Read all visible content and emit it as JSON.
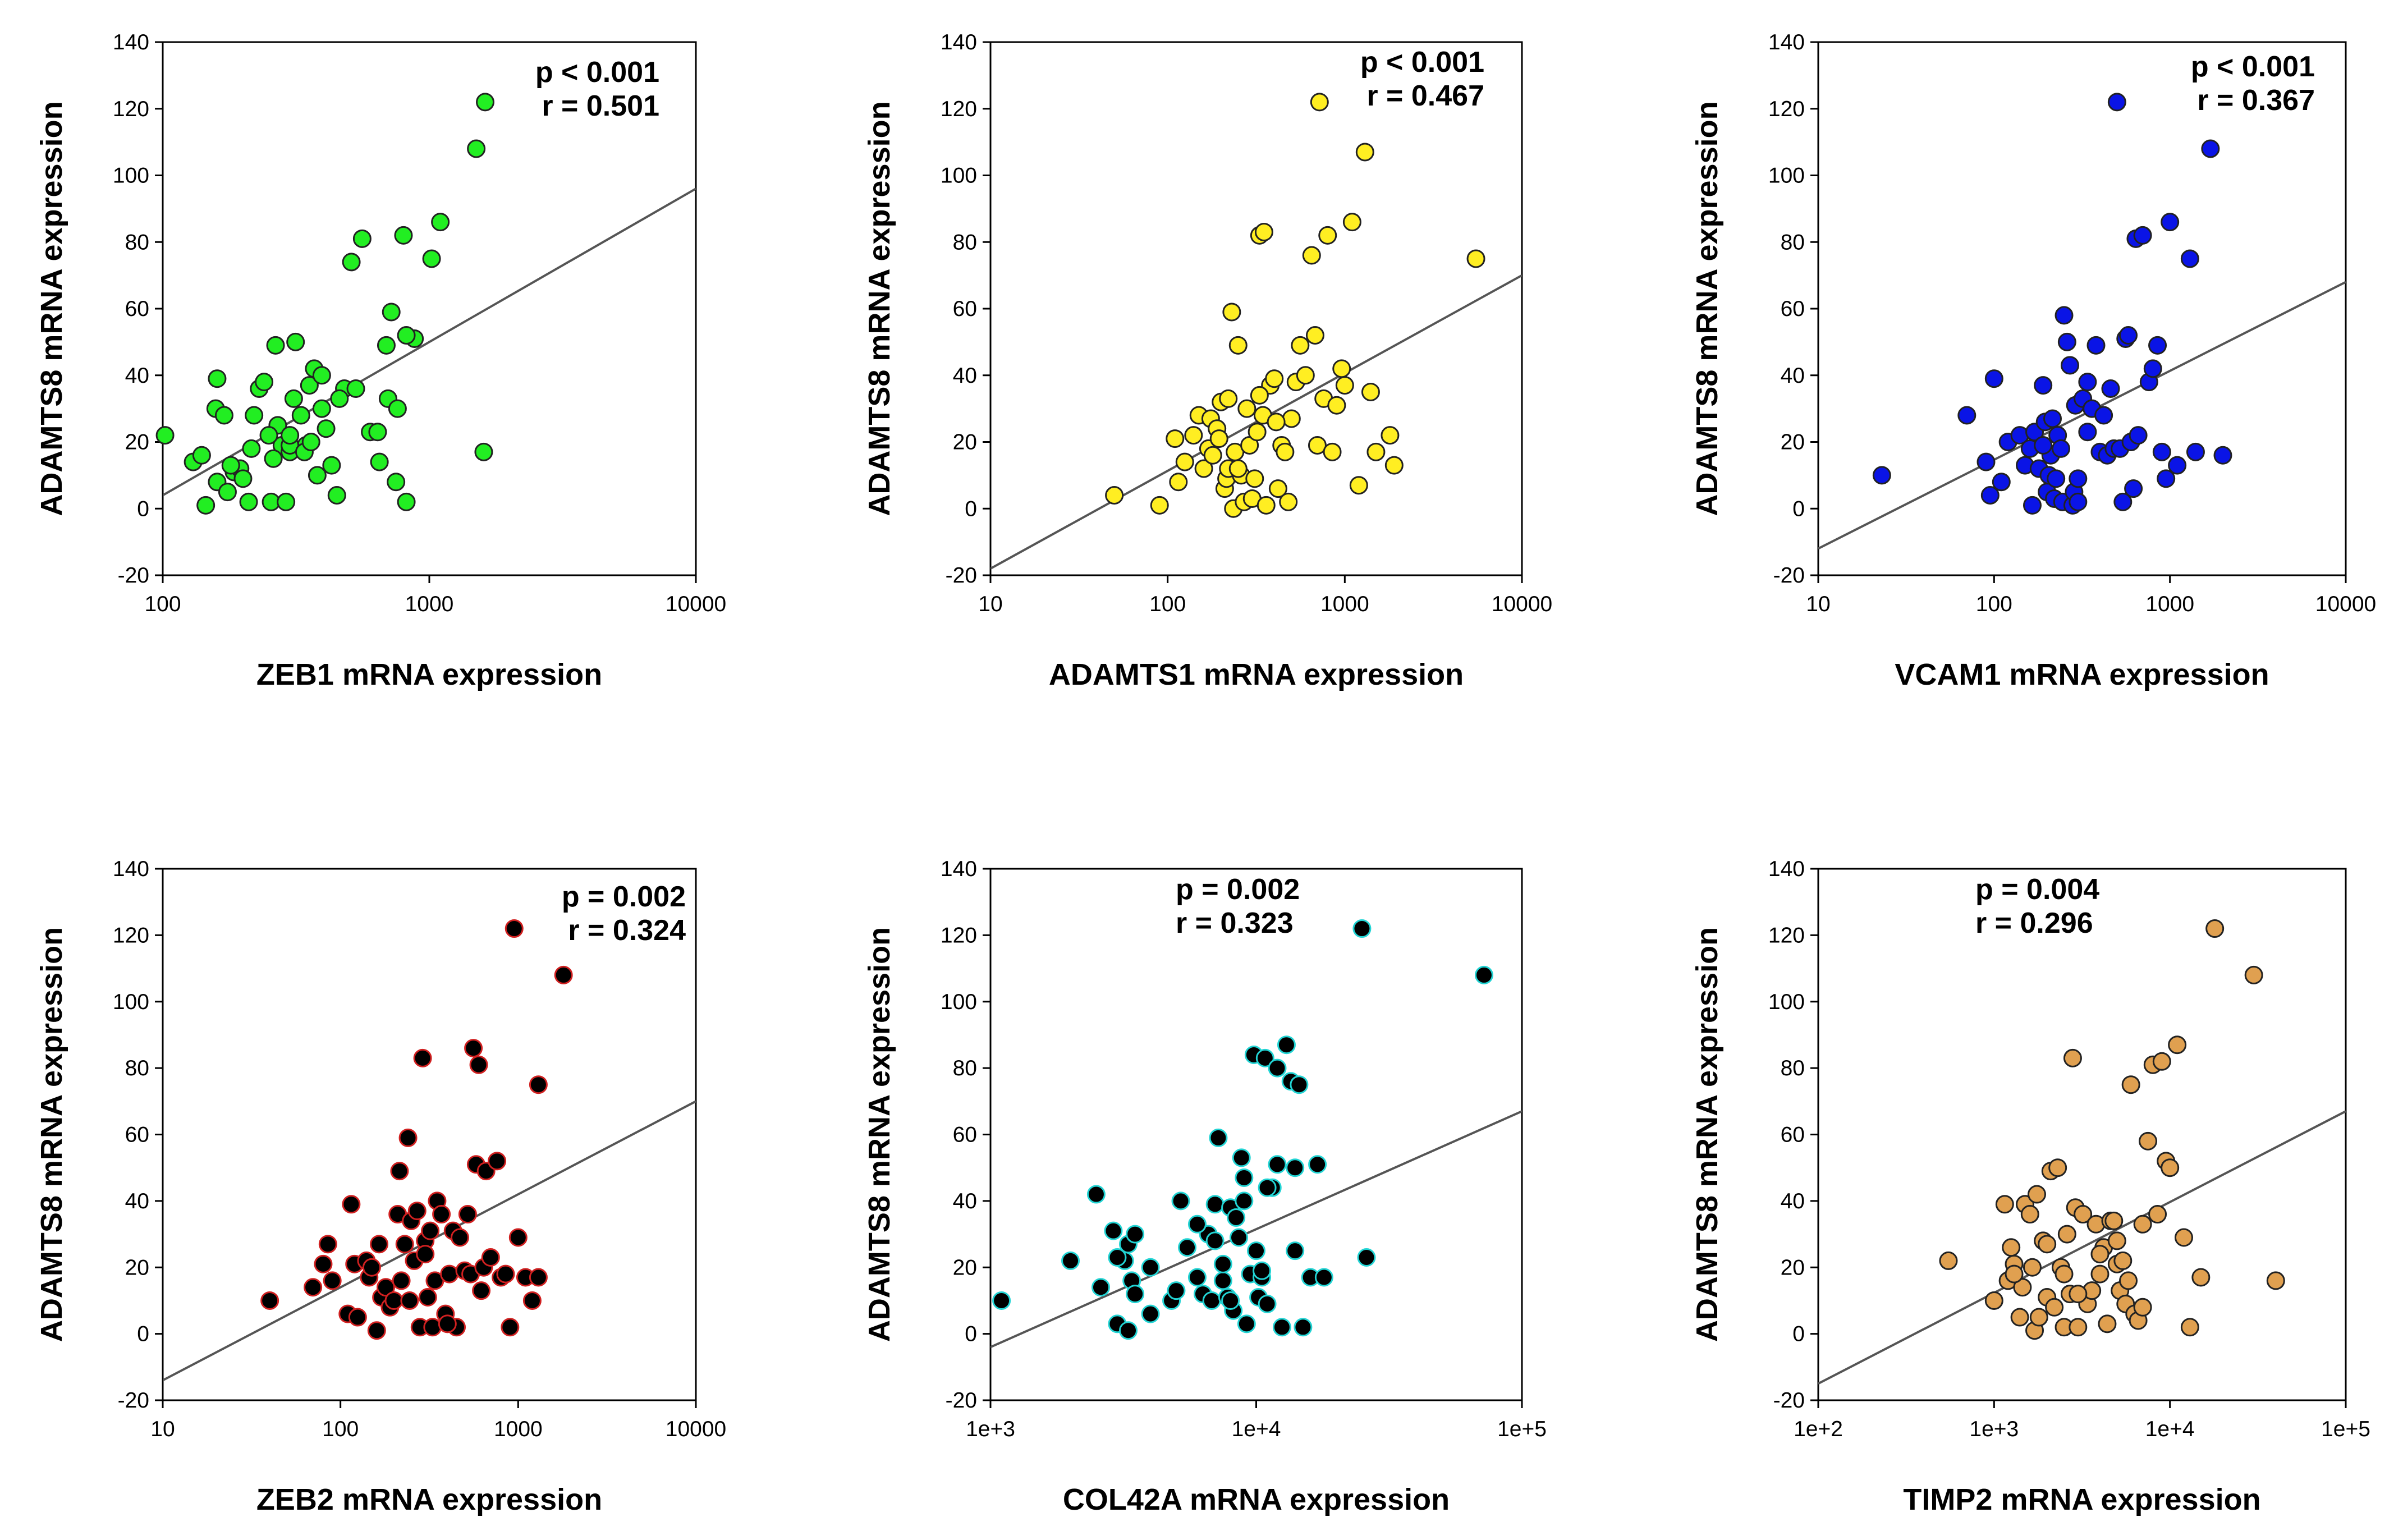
{
  "chart_data": [
    {
      "type": "scatter",
      "name": "zeb1",
      "xlabel": "ZEB1 mRNA expression",
      "ylabel": "ADAMTS8 mRNA expression",
      "xscale": "log",
      "xlim": [
        100,
        10000
      ],
      "ylim": [
        -20,
        140
      ],
      "xticks": [
        100,
        1000,
        10000
      ],
      "xtick_labels": [
        "100",
        "1000",
        "10000"
      ],
      "yticks": [
        -20,
        0,
        20,
        40,
        60,
        80,
        100,
        120,
        140
      ],
      "ytick_labels": [
        "-20",
        "0",
        "20",
        "40",
        "60",
        "80",
        "100",
        "120",
        "140"
      ],
      "annotations": [
        "p < 0.001",
        "r = 0.501"
      ],
      "annotation_anchor": "end",
      "marker_fill": "#22ee22",
      "marker_edge": "#222222",
      "regression": {
        "x": [
          100,
          10000
        ],
        "y": [
          4,
          96
        ]
      },
      "x": [
        102,
        130,
        140,
        160,
        158,
        170,
        185,
        195,
        145,
        200,
        210,
        160,
        175,
        220,
        230,
        240,
        255,
        265,
        270,
        280,
        290,
        300,
        310,
        315,
        330,
        345,
        355,
        370,
        380,
        395,
        410,
        430,
        450,
        480,
        510,
        530,
        560,
        600,
        650,
        690,
        720,
        750,
        800,
        820,
        880,
        1020,
        1100,
        1500,
        1620,
        1600,
        180,
        250,
        260,
        300,
        340,
        360,
        460,
        640,
        700,
        760,
        820,
        395,
        300,
        215
      ],
      "y": [
        22,
        14,
        16,
        8,
        30,
        28,
        11,
        12,
        1,
        9,
        2,
        39,
        5,
        28,
        36,
        38,
        2,
        49,
        25,
        19,
        2,
        17,
        33,
        50,
        28,
        19,
        37,
        42,
        10,
        30,
        24,
        13,
        4,
        36,
        74,
        36,
        81,
        23,
        14,
        49,
        59,
        8,
        82,
        2,
        51,
        75,
        86,
        108,
        122,
        17,
        13,
        22,
        15,
        19,
        17,
        20,
        33,
        23,
        33,
        30,
        52,
        40,
        22,
        18
      ]
    },
    {
      "type": "scatter",
      "name": "adamts1",
      "xlabel": "ADAMTS1 mRNA expression",
      "ylabel": "ADAMTS8 mRNA expression",
      "xscale": "log",
      "xlim": [
        10,
        10000
      ],
      "ylim": [
        -20,
        140
      ],
      "xticks": [
        10,
        100,
        1000,
        10000
      ],
      "xtick_labels": [
        "10",
        "100",
        "1000",
        "10000"
      ],
      "yticks": [
        -20,
        0,
        20,
        40,
        60,
        80,
        100,
        120,
        140
      ],
      "ytick_labels": [
        "-20",
        "0",
        "20",
        "40",
        "60",
        "80",
        "100",
        "120",
        "140"
      ],
      "annotations": [
        "p < 0.001",
        "r = 0.467"
      ],
      "annotation_anchor": "end",
      "marker_fill": "#ffee22",
      "marker_edge": "#222222",
      "regression": {
        "x": [
          10,
          10000
        ],
        "y": [
          -18,
          70
        ]
      },
      "x": [
        50,
        90,
        110,
        115,
        125,
        140,
        150,
        160,
        170,
        175,
        180,
        190,
        195,
        200,
        210,
        215,
        220,
        230,
        235,
        240,
        250,
        260,
        270,
        280,
        290,
        300,
        310,
        320,
        330,
        345,
        360,
        380,
        400,
        420,
        440,
        460,
        480,
        500,
        530,
        560,
        600,
        650,
        680,
        700,
        720,
        760,
        800,
        850,
        900,
        960,
        1000,
        1100,
        1200,
        1300,
        1400,
        1500,
        1800,
        1900,
        5500,
        350,
        330,
        250,
        220,
        410
      ],
      "y": [
        4,
        1,
        21,
        8,
        14,
        22,
        28,
        12,
        18,
        27,
        16,
        24,
        21,
        32,
        6,
        9,
        12,
        59,
        0,
        17,
        49,
        10,
        2,
        30,
        19,
        3,
        9,
        23,
        82,
        28,
        1,
        37,
        39,
        6,
        19,
        17,
        2,
        27,
        38,
        49,
        40,
        76,
        52,
        19,
        122,
        33,
        82,
        17,
        31,
        42,
        37,
        86,
        7,
        107,
        35,
        17,
        22,
        13,
        75,
        83,
        34,
        12,
        33,
        26
      ]
    },
    {
      "type": "scatter",
      "name": "vcam1",
      "xlabel": "VCAM1 mRNA expression",
      "ylabel": "ADAMTS8 mRNA expression",
      "xscale": "log",
      "xlim": [
        10,
        10000
      ],
      "ylim": [
        -20,
        140
      ],
      "xticks": [
        10,
        100,
        1000,
        10000
      ],
      "xtick_labels": [
        "10",
        "100",
        "1000",
        "10000"
      ],
      "yticks": [
        -20,
        0,
        20,
        40,
        60,
        80,
        100,
        120,
        140
      ],
      "ytick_labels": [
        "-20",
        "0",
        "20",
        "40",
        "60",
        "80",
        "100",
        "120",
        "140"
      ],
      "annotations": [
        "p < 0.001",
        "r = 0.367"
      ],
      "annotation_anchor": "end",
      "marker_fill": "#0a14e6",
      "marker_edge": "#222222",
      "regression": {
        "x": [
          10,
          10000
        ],
        "y": [
          -12,
          68
        ]
      },
      "x": [
        23,
        70,
        90,
        95,
        100,
        110,
        120,
        140,
        150,
        160,
        165,
        170,
        180,
        190,
        195,
        200,
        205,
        210,
        215,
        220,
        225,
        230,
        240,
        245,
        250,
        260,
        270,
        280,
        285,
        290,
        300,
        320,
        340,
        360,
        380,
        400,
        420,
        440,
        460,
        480,
        500,
        520,
        540,
        560,
        580,
        600,
        620,
        640,
        660,
        700,
        760,
        800,
        850,
        900,
        950,
        1000,
        1100,
        1300,
        1400,
        1700,
        2000,
        300,
        340,
        190
      ],
      "y": [
        10,
        28,
        14,
        4,
        39,
        8,
        20,
        22,
        13,
        18,
        1,
        23,
        12,
        37,
        26,
        5,
        10,
        16,
        27,
        3,
        9,
        22,
        18,
        2,
        58,
        50,
        43,
        1,
        5,
        31,
        2,
        33,
        23,
        30,
        49,
        17,
        28,
        16,
        36,
        18,
        122,
        18,
        2,
        51,
        52,
        20,
        6,
        81,
        22,
        82,
        38,
        42,
        49,
        17,
        9,
        86,
        13,
        75,
        17,
        108,
        16,
        9,
        38,
        19
      ]
    },
    {
      "type": "scatter",
      "name": "zeb2",
      "xlabel": "ZEB2 mRNA expression",
      "ylabel": "ADAMTS8 mRNA expression",
      "xscale": "log",
      "xlim": [
        10,
        10000
      ],
      "ylim": [
        -20,
        140
      ],
      "xticks": [
        10,
        100,
        1000,
        10000
      ],
      "xtick_labels": [
        "10",
        "100",
        "1000",
        "10000"
      ],
      "yticks": [
        -20,
        0,
        20,
        40,
        60,
        80,
        100,
        120,
        140
      ],
      "ytick_labels": [
        "-20",
        "0",
        "20",
        "40",
        "60",
        "80",
        "100",
        "120",
        "140"
      ],
      "annotations": [
        "p = 0.002",
        "r = 0.324"
      ],
      "annotation_anchor": "end",
      "marker_fill": "#000000",
      "marker_edge": "#d02020",
      "regression": {
        "x": [
          10,
          10000
        ],
        "y": [
          -14,
          70
        ]
      },
      "x": [
        40,
        70,
        80,
        85,
        90,
        110,
        115,
        120,
        125,
        140,
        145,
        150,
        160,
        165,
        170,
        180,
        190,
        200,
        210,
        215,
        220,
        230,
        240,
        245,
        250,
        260,
        270,
        280,
        290,
        300,
        310,
        320,
        330,
        340,
        350,
        370,
        390,
        410,
        430,
        450,
        470,
        500,
        520,
        540,
        560,
        580,
        600,
        620,
        640,
        660,
        700,
        760,
        800,
        850,
        900,
        950,
        1000,
        1100,
        1200,
        1300,
        1300,
        1800,
        300,
        400
      ],
      "y": [
        10,
        14,
        21,
        27,
        16,
        6,
        39,
        21,
        5,
        22,
        17,
        20,
        1,
        27,
        11,
        14,
        8,
        10,
        36,
        49,
        16,
        27,
        59,
        10,
        34,
        22,
        37,
        2,
        83,
        28,
        11,
        31,
        2,
        16,
        40,
        36,
        6,
        18,
        31,
        2,
        29,
        19,
        36,
        18,
        86,
        51,
        81,
        13,
        20,
        49,
        23,
        52,
        17,
        18,
        2,
        122,
        29,
        17,
        10,
        17,
        75,
        108,
        24,
        3
      ]
    },
    {
      "type": "scatter",
      "name": "col42a",
      "xlabel": "COL42A mRNA expression",
      "ylabel": "ADAMTS8 mRNA expression",
      "xscale": "log",
      "xlim": [
        1000,
        100000
      ],
      "ylim": [
        -20,
        140
      ],
      "xticks": [
        1000,
        10000,
        100000
      ],
      "xtick_labels": [
        "1e+3",
        "1e+4",
        "1e+5"
      ],
      "yticks": [
        -20,
        0,
        20,
        40,
        60,
        80,
        100,
        120,
        140
      ],
      "ytick_labels": [
        "-20",
        "0",
        "20",
        "40",
        "60",
        "80",
        "100",
        "120",
        "140"
      ],
      "annotations": [
        "p = 0.002",
        "r = 0.323"
      ],
      "annotation_anchor": "start",
      "marker_fill": "#000000",
      "marker_edge": "#22d4d4",
      "regression": {
        "x": [
          1000,
          100000
        ],
        "y": [
          -4,
          67
        ]
      },
      "x": [
        1100,
        2000,
        2500,
        2600,
        2900,
        3000,
        3200,
        3300,
        3300,
        3400,
        3500,
        3500,
        4000,
        4800,
        5200,
        5500,
        6000,
        6300,
        6600,
        6800,
        7000,
        7200,
        7500,
        7800,
        8000,
        8200,
        8400,
        8600,
        8800,
        9000,
        9200,
        9500,
        9800,
        10000,
        10200,
        10500,
        10800,
        11000,
        11500,
        12000,
        12500,
        13000,
        13500,
        14000,
        14500,
        15000,
        16000,
        17000,
        18000,
        25000,
        26000,
        72000,
        7000,
        7500,
        8000,
        10500,
        12000,
        4000,
        6000,
        9000,
        11000,
        14000,
        3000,
        5000
      ],
      "y": [
        10,
        22,
        42,
        14,
        31,
        3,
        22,
        1,
        27,
        16,
        30,
        12,
        6,
        10,
        40,
        26,
        17,
        12,
        30,
        10,
        39,
        59,
        16,
        11,
        38,
        7,
        35,
        29,
        53,
        47,
        3,
        18,
        84,
        25,
        11,
        17,
        83,
        9,
        44,
        80,
        2,
        87,
        76,
        50,
        75,
        2,
        17,
        51,
        17,
        122,
        23,
        108,
        28,
        21,
        10,
        19,
        51,
        20,
        33,
        40,
        44,
        25,
        23,
        13
      ]
    },
    {
      "type": "scatter",
      "name": "timp2",
      "xlabel": "TIMP2 mRNA expression",
      "ylabel": "ADAMTS8 mRNA expression",
      "xscale": "log",
      "xlim": [
        100,
        100000
      ],
      "ylim": [
        -20,
        140
      ],
      "xticks": [
        100,
        1000,
        10000,
        100000
      ],
      "xtick_labels": [
        "1e+2",
        "1e+3",
        "1e+4",
        "1e+5"
      ],
      "yticks": [
        -20,
        0,
        20,
        40,
        60,
        80,
        100,
        120,
        140
      ],
      "ytick_labels": [
        "-20",
        "0",
        "20",
        "40",
        "60",
        "80",
        "100",
        "120",
        "140"
      ],
      "annotations": [
        "p = 0.004",
        "r = 0.296"
      ],
      "annotation_anchor": "start",
      "marker_fill": "#e0a050",
      "marker_edge": "#222222",
      "regression": {
        "x": [
          100,
          100000
        ],
        "y": [
          -15,
          67
        ]
      },
      "x": [
        550,
        1000,
        1150,
        1200,
        1250,
        1300,
        1400,
        1450,
        1500,
        1600,
        1650,
        1700,
        1750,
        1800,
        1900,
        2000,
        2100,
        2200,
        2300,
        2400,
        2500,
        2600,
        2700,
        2800,
        2900,
        3000,
        3200,
        3400,
        3600,
        3800,
        4000,
        4200,
        4400,
        4600,
        4800,
        5000,
        5200,
        5400,
        5600,
        5800,
        6000,
        6300,
        6600,
        7000,
        7500,
        8000,
        8500,
        9000,
        9500,
        10000,
        11000,
        12000,
        13000,
        15000,
        18000,
        30000,
        40000,
        1300,
        2000,
        3000,
        5000,
        7000,
        2500,
        4000
      ],
      "y": [
        22,
        10,
        39,
        16,
        26,
        21,
        5,
        14,
        39,
        36,
        20,
        1,
        42,
        5,
        28,
        11,
        49,
        8,
        50,
        20,
        2,
        30,
        12,
        83,
        38,
        2,
        36,
        9,
        13,
        33,
        18,
        26,
        3,
        34,
        34,
        21,
        13,
        22,
        9,
        16,
        75,
        6,
        4,
        33,
        58,
        81,
        36,
        82,
        52,
        50,
        87,
        29,
        2,
        17,
        122,
        108,
        16,
        18,
        27,
        12,
        28,
        8,
        18,
        24
      ]
    }
  ]
}
